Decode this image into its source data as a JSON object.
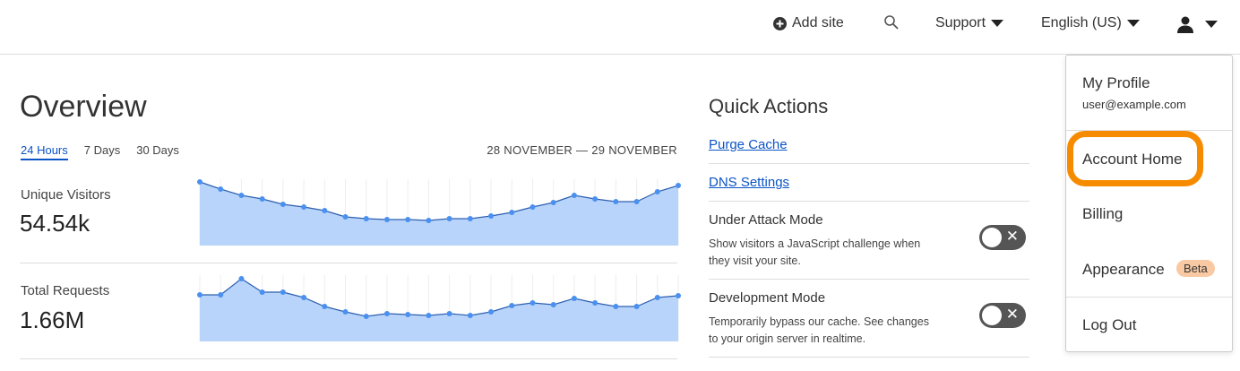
{
  "topbar": {
    "add_site": "Add site",
    "support": "Support",
    "language": "English (US)"
  },
  "overview": {
    "title": "Overview",
    "tabs": [
      {
        "label": "24 Hours",
        "active": true
      },
      {
        "label": "7 Days"
      },
      {
        "label": "30 Days"
      }
    ],
    "date_range": "28 NOVEMBER — 29 NOVEMBER"
  },
  "metrics": [
    {
      "label": "Unique Visitors",
      "value": "54.54k"
    },
    {
      "label": "Total Requests",
      "value": "1.66M"
    }
  ],
  "chart_data": [
    {
      "type": "area",
      "title": "Unique Visitors",
      "values": [
        71,
        63,
        56,
        52,
        46,
        43,
        39,
        32,
        30,
        29,
        29,
        28,
        30,
        30,
        33,
        37,
        43,
        48,
        56,
        52,
        49,
        49,
        60,
        67
      ],
      "color": "#4a90f0",
      "fill": "#b8d4fa"
    },
    {
      "type": "area",
      "title": "Total Requests",
      "values": [
        52,
        52,
        70,
        55,
        55,
        49,
        39,
        33,
        28,
        31,
        30,
        29,
        31,
        29,
        33,
        40,
        43,
        41,
        48,
        43,
        39,
        39,
        49,
        51
      ],
      "color": "#4a90f0",
      "fill": "#b8d4fa"
    }
  ],
  "quick_actions": {
    "title": "Quick Actions",
    "links": [
      "Purge Cache",
      "DNS Settings"
    ],
    "toggles": [
      {
        "title": "Under Attack Mode",
        "desc": "Show visitors a JavaScript challenge when they visit your site.",
        "on": false
      },
      {
        "title": "Development Mode",
        "desc": "Temporarily bypass our cache. See changes to your origin server in realtime.",
        "on": false
      }
    ]
  },
  "menu": {
    "profile": "My Profile",
    "email": "user@example.com",
    "account_home": "Account Home",
    "billing": "Billing",
    "appearance": "Appearance",
    "beta": "Beta",
    "logout": "Log Out",
    "highlight_color": "#f68b00"
  }
}
